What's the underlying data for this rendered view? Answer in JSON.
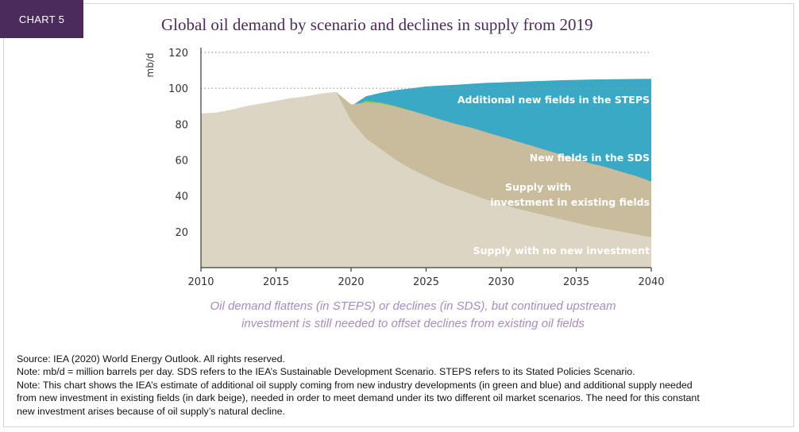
{
  "header": {
    "chart_tag": "CHART 5",
    "title": "Global oil demand by scenario and declines in supply from 2019"
  },
  "caption": {
    "line1": "Oil demand flattens (in STEPS) or declines (in SDS), but continued upstream",
    "line2": "investment is still needed to offset declines from existing oil fields"
  },
  "notes": {
    "source": "Source: IEA (2020) World Energy Outlook. All rights reserved.",
    "note1": "Note: mb/d = million barrels per day. SDS refers to the IEA’s Sustainable Development Scenario. STEPS refers to its Stated Policies Scenario.",
    "note2a": "Note: This chart shows the IEA’s estimate of additional oil supply coming from new industry developments (in green and blue) and additional supply needed",
    "note2b": "from new investment in existing fields (in dark beige), needed in order to meet demand under its two different oil market scenarios. The need for this constant",
    "note2c": "new investment arises because of oil supply’s natural decline."
  },
  "colors": {
    "tag_bg": "#4b2a5c",
    "title": "#4b2a5c",
    "caption": "#a98bc3",
    "no_new_investment": "#dcd5c3",
    "existing_fields": "#c8bc9c",
    "sds_new_fields": "#8ccd4a",
    "steps_new_fields": "#39a9c6"
  },
  "chart_data": {
    "type": "area",
    "ylabel": "mb/d",
    "xlabel": "",
    "xlim": [
      2010,
      2040
    ],
    "ylim": [
      0,
      120
    ],
    "x_ticks": [
      2010,
      2015,
      2020,
      2025,
      2030,
      2035,
      2040
    ],
    "y_ticks": [
      20,
      40,
      60,
      80,
      100,
      120
    ],
    "grid": "dotted at 100 and 120",
    "series": [
      {
        "name": "Supply with no new investment",
        "color": "#dcd5c3",
        "points": [
          [
            2010,
            86
          ],
          [
            2011,
            86.5
          ],
          [
            2012,
            88
          ],
          [
            2013,
            90
          ],
          [
            2014,
            91.5
          ],
          [
            2015,
            93
          ],
          [
            2016,
            94.5
          ],
          [
            2017,
            95.5
          ],
          [
            2018,
            97
          ],
          [
            2019,
            98
          ],
          [
            2020,
            82
          ],
          [
            2021,
            72
          ],
          [
            2022,
            66
          ],
          [
            2023,
            60
          ],
          [
            2024,
            55
          ],
          [
            2025,
            51
          ],
          [
            2026,
            47
          ],
          [
            2027,
            44
          ],
          [
            2028,
            41
          ],
          [
            2029,
            38
          ],
          [
            2030,
            35.5
          ],
          [
            2031,
            33
          ],
          [
            2032,
            31
          ],
          [
            2033,
            29
          ],
          [
            2034,
            27
          ],
          [
            2035,
            25
          ],
          [
            2036,
            23
          ],
          [
            2037,
            21.5
          ],
          [
            2038,
            20
          ],
          [
            2039,
            18.5
          ],
          [
            2040,
            17
          ]
        ]
      },
      {
        "name": "Supply with investment in existing fields",
        "color": "#c8bc9c",
        "points": [
          [
            2019,
            98
          ],
          [
            2020,
            91
          ],
          [
            2021,
            92
          ],
          [
            2022,
            91.5
          ],
          [
            2023,
            89.5
          ],
          [
            2024,
            87.5
          ],
          [
            2025,
            85
          ],
          [
            2026,
            82.5
          ],
          [
            2027,
            80
          ],
          [
            2028,
            78
          ],
          [
            2029,
            75.5
          ],
          [
            2030,
            73
          ],
          [
            2031,
            70.5
          ],
          [
            2032,
            68
          ],
          [
            2033,
            65.5
          ],
          [
            2034,
            63
          ],
          [
            2035,
            60.5
          ],
          [
            2036,
            58
          ],
          [
            2037,
            56
          ],
          [
            2038,
            53.5
          ],
          [
            2039,
            51
          ],
          [
            2040,
            48
          ]
        ]
      },
      {
        "name": "New fields in the SDS",
        "color": "#8ccd4a",
        "points": [
          [
            2019,
            98
          ],
          [
            2020,
            89.5
          ],
          [
            2021,
            93
          ],
          [
            2022,
            92
          ],
          [
            2023,
            90
          ],
          [
            2024,
            87.5
          ],
          [
            2025,
            85
          ],
          [
            2026,
            82
          ],
          [
            2027,
            79.5
          ],
          [
            2028,
            77
          ],
          [
            2029,
            74
          ],
          [
            2030,
            71.5
          ],
          [
            2031,
            69
          ],
          [
            2032,
            66.5
          ],
          [
            2033,
            64
          ],
          [
            2034,
            61.5
          ],
          [
            2035,
            59
          ],
          [
            2036,
            56
          ],
          [
            2037,
            53
          ],
          [
            2038,
            50
          ],
          [
            2039,
            47
          ],
          [
            2040,
            44
          ]
        ]
      },
      {
        "name": "Additional new fields in the STEPS",
        "color": "#39a9c6",
        "points": [
          [
            2019,
            98
          ],
          [
            2020,
            90
          ],
          [
            2021,
            95.5
          ],
          [
            2022,
            97.5
          ],
          [
            2023,
            99
          ],
          [
            2024,
            100
          ],
          [
            2025,
            101
          ],
          [
            2026,
            101.5
          ],
          [
            2027,
            102
          ],
          [
            2028,
            102.5
          ],
          [
            2029,
            103
          ],
          [
            2030,
            103.3
          ],
          [
            2031,
            103.6
          ],
          [
            2032,
            103.9
          ],
          [
            2033,
            104.2
          ],
          [
            2034,
            104.5
          ],
          [
            2035,
            104.7
          ],
          [
            2036,
            104.9
          ],
          [
            2037,
            105
          ],
          [
            2038,
            105.1
          ],
          [
            2039,
            105.2
          ],
          [
            2040,
            105.3
          ]
        ]
      }
    ],
    "annotations": [
      "Additional new fields in the STEPS",
      "New fields in the SDS",
      "Supply with",
      "investment in existing fields",
      "Supply with no new investment"
    ]
  }
}
